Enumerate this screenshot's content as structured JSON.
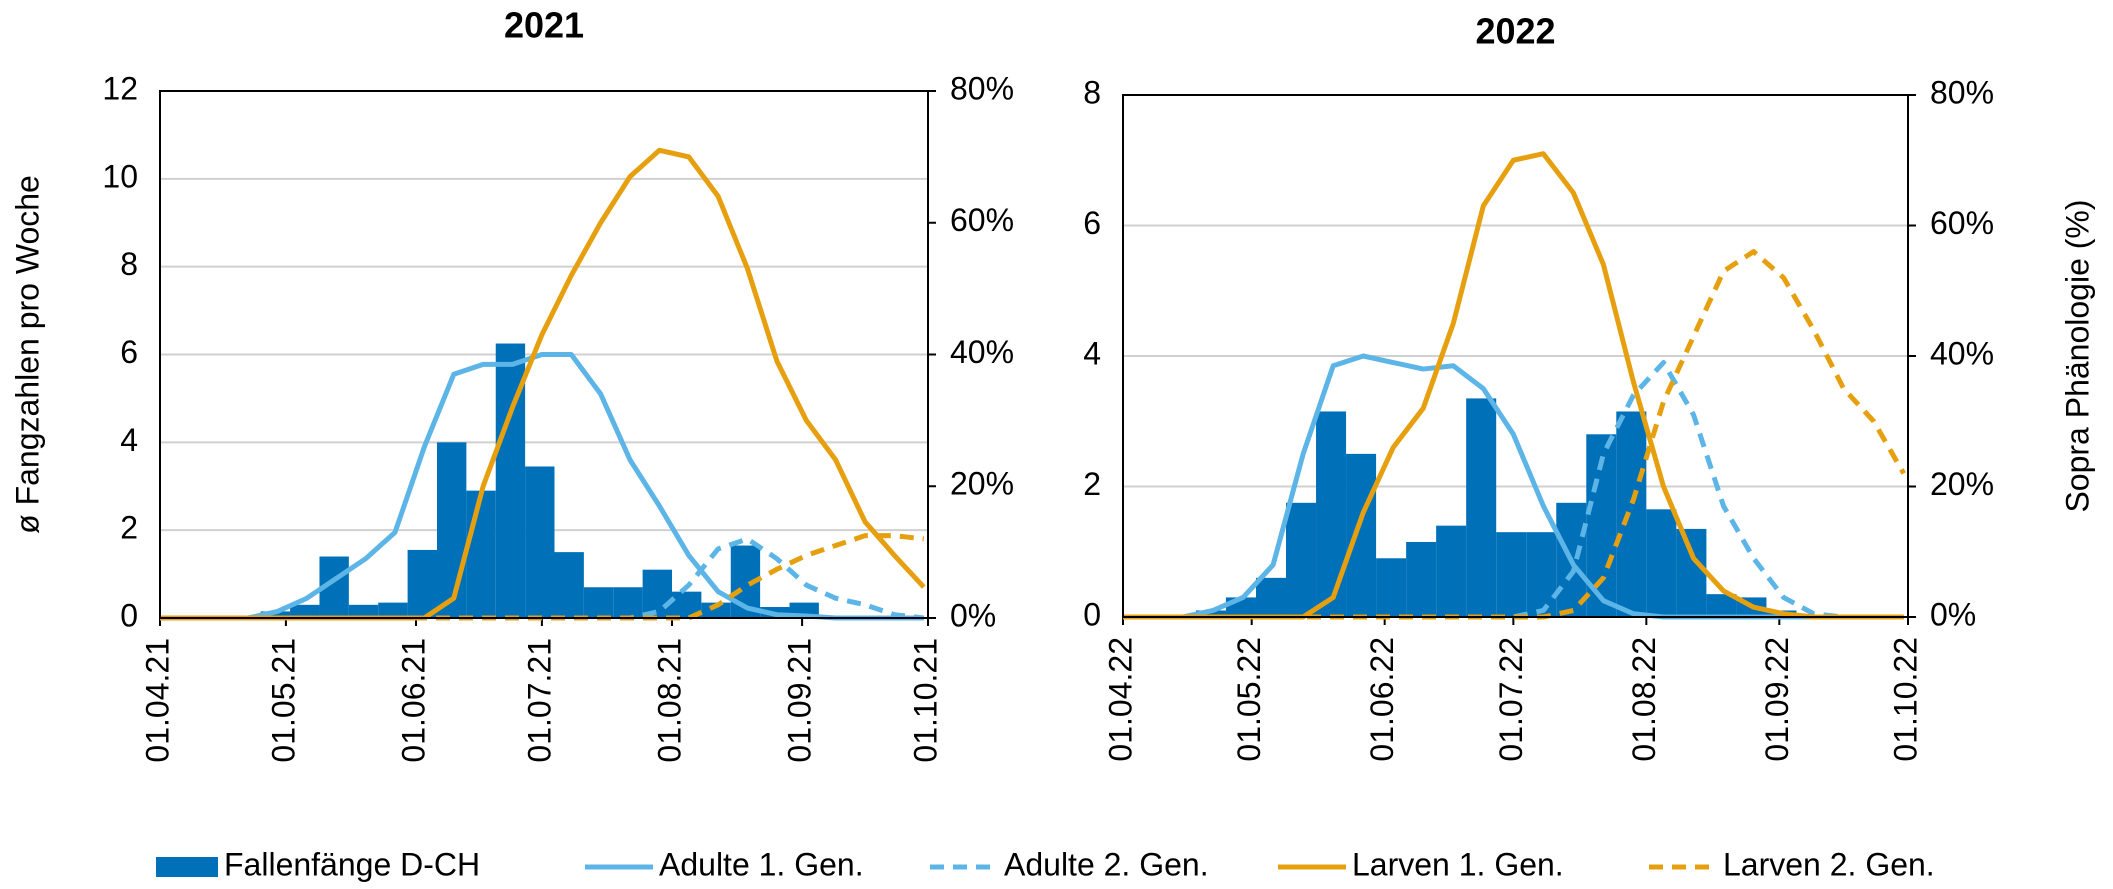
{
  "chart_data": [
    {
      "type": "combo",
      "title": "2021",
      "ylabel": "ø Fangzahlen pro Woche",
      "xlim": [
        0,
        183
      ],
      "xticks": [
        {
          "value": 0,
          "label": "01.04.21"
        },
        {
          "value": 30,
          "label": "01.05.21"
        },
        {
          "value": 61,
          "label": "01.06.21"
        },
        {
          "value": 91,
          "label": "01.07.21"
        },
        {
          "value": 122,
          "label": "01.08.21"
        },
        {
          "value": 153,
          "label": "01.09.21"
        },
        {
          "value": 183,
          "label": "01.10.21"
        }
      ],
      "ylim": [
        0,
        12
      ],
      "yticks": [
        0,
        2,
        4,
        6,
        8,
        10,
        12
      ],
      "y2lim": [
        0,
        80
      ],
      "y2ticks": [
        {
          "value": 0,
          "label": "0%"
        },
        {
          "value": 20,
          "label": "20%"
        },
        {
          "value": 40,
          "label": "40%"
        },
        {
          "value": 60,
          "label": "60%"
        },
        {
          "value": 80,
          "label": "80%"
        }
      ],
      "grid": true,
      "bars": {
        "name": "Fallenfänge D-CH",
        "color": "#0070b8",
        "bins": [
          24,
          31,
          38,
          45,
          52,
          59,
          66,
          73,
          80,
          87,
          94,
          101,
          108,
          115,
          122,
          129,
          136,
          143,
          150,
          157
        ],
        "values": [
          0.15,
          0.3,
          1.4,
          0.3,
          0.35,
          1.55,
          4.0,
          2.9,
          6.25,
          3.45,
          1.5,
          0.7,
          0.7,
          1.1,
          0.6,
          0.35,
          1.65,
          0.25,
          0.35
        ]
      },
      "x": [
        0,
        7,
        14,
        21,
        28,
        35,
        42,
        49,
        56,
        63,
        70,
        77,
        84,
        91,
        98,
        105,
        112,
        119,
        126,
        133,
        140,
        147,
        154,
        161,
        168,
        175,
        182
      ],
      "series": [
        {
          "name": "Adulte 1. Gen.",
          "color": "#5cb5e6",
          "axis": "y2",
          "dashed": false,
          "values": [
            0,
            0,
            0,
            0,
            1,
            3,
            6,
            9,
            13,
            26,
            37,
            38.5,
            38.5,
            40,
            40,
            34,
            24,
            17,
            9.5,
            4,
            1.5,
            0.5,
            0.3,
            0,
            0,
            0,
            0
          ]
        },
        {
          "name": "Adulte 2. Gen.",
          "color": "#5cb5e6",
          "axis": "y2",
          "dashed": true,
          "values": [
            0,
            0,
            0,
            0,
            0,
            0,
            0,
            0,
            0,
            0,
            0,
            0,
            0,
            0,
            0,
            0,
            0,
            1,
            5,
            10.5,
            12,
            9,
            5,
            3,
            2,
            0.5,
            0
          ]
        },
        {
          "name": "Larven 1. Gen.",
          "color": "#e6a00f",
          "axis": "y2",
          "dashed": false,
          "values": [
            0,
            0,
            0,
            0,
            0,
            0,
            0,
            0,
            0,
            0,
            3,
            20,
            32,
            43,
            52,
            60,
            67,
            71,
            70,
            64,
            53,
            39,
            30,
            24,
            14.6,
            9.5,
            4.7
          ]
        },
        {
          "name": "Larven 2. Gen.",
          "color": "#e6a00f",
          "axis": "y2",
          "dashed": true,
          "values": [
            0,
            0,
            0,
            0,
            0,
            0,
            0,
            0,
            0,
            0,
            0,
            0,
            0,
            0,
            0,
            0,
            0,
            0,
            0,
            2,
            5,
            7.4,
            9.5,
            11,
            12.5,
            12.5,
            12
          ]
        }
      ]
    },
    {
      "type": "combo",
      "title": "2022",
      "y2label": "Sopra Phänologie (%)",
      "xlim": [
        0,
        183
      ],
      "xticks": [
        {
          "value": 0,
          "label": "01.04.22"
        },
        {
          "value": 30,
          "label": "01.05.22"
        },
        {
          "value": 61,
          "label": "01.06.22"
        },
        {
          "value": 91,
          "label": "01.07.22"
        },
        {
          "value": 122,
          "label": "01.08.22"
        },
        {
          "value": 153,
          "label": "01.09.22"
        },
        {
          "value": 183,
          "label": "01.10.22"
        }
      ],
      "ylim": [
        0,
        8
      ],
      "yticks": [
        0,
        2,
        4,
        6,
        8
      ],
      "y2lim": [
        0,
        80
      ],
      "y2ticks": [
        {
          "value": 0,
          "label": "0%"
        },
        {
          "value": 20,
          "label": "20%"
        },
        {
          "value": 40,
          "label": "40%"
        },
        {
          "value": 60,
          "label": "60%"
        },
        {
          "value": 80,
          "label": "80%"
        }
      ],
      "grid": true,
      "bars": {
        "name": "Fallenfänge D-CH",
        "color": "#0070b8",
        "bins": [
          17,
          24,
          31,
          38,
          45,
          52,
          59,
          66,
          73,
          80,
          87,
          94,
          101,
          108,
          115,
          122,
          129,
          136,
          143,
          150,
          157
        ],
        "values": [
          0.1,
          0.3,
          0.6,
          1.75,
          3.15,
          2.5,
          0.9,
          1.15,
          1.4,
          3.35,
          1.3,
          1.3,
          1.75,
          2.8,
          3.15,
          1.65,
          1.35,
          0.35,
          0.3,
          0.1
        ]
      },
      "x": [
        0,
        7,
        14,
        21,
        28,
        35,
        42,
        49,
        56,
        63,
        70,
        77,
        84,
        91,
        98,
        105,
        112,
        119,
        126,
        133,
        140,
        147,
        154,
        161,
        168,
        175,
        182
      ],
      "series": [
        {
          "name": "Adulte 1. Gen.",
          "color": "#5cb5e6",
          "axis": "y2",
          "dashed": false,
          "values": [
            0,
            0,
            0,
            1,
            3,
            8,
            25,
            38.5,
            40,
            39,
            38,
            38.5,
            35,
            28,
            17,
            8,
            2.5,
            0.5,
            0,
            0,
            0,
            0,
            0,
            0,
            0,
            0,
            0
          ]
        },
        {
          "name": "Adulte 2. Gen.",
          "color": "#5cb5e6",
          "axis": "y2",
          "dashed": true,
          "values": [
            0,
            0,
            0,
            0,
            0,
            0,
            0,
            0,
            0,
            0,
            0,
            0,
            0,
            0,
            1,
            7,
            25,
            34,
            39,
            31,
            17,
            9,
            3,
            0.5,
            0,
            0,
            0
          ]
        },
        {
          "name": "Larven 1. Gen.",
          "color": "#e6a00f",
          "axis": "y2",
          "dashed": false,
          "values": [
            0,
            0,
            0,
            0,
            0,
            0,
            0,
            3,
            16,
            26,
            32,
            45,
            63,
            70,
            71,
            65,
            54,
            36,
            20,
            9,
            4,
            1.5,
            0.5,
            0,
            0,
            0,
            0
          ]
        },
        {
          "name": "Larven 2. Gen.",
          "color": "#e6a00f",
          "axis": "y2",
          "dashed": true,
          "values": [
            0,
            0,
            0,
            0,
            0,
            0,
            0,
            0,
            0,
            0,
            0,
            0,
            0,
            0,
            0,
            1,
            6,
            18,
            33,
            43,
            53,
            56,
            52,
            44,
            35,
            30,
            22
          ]
        }
      ]
    }
  ]
}
